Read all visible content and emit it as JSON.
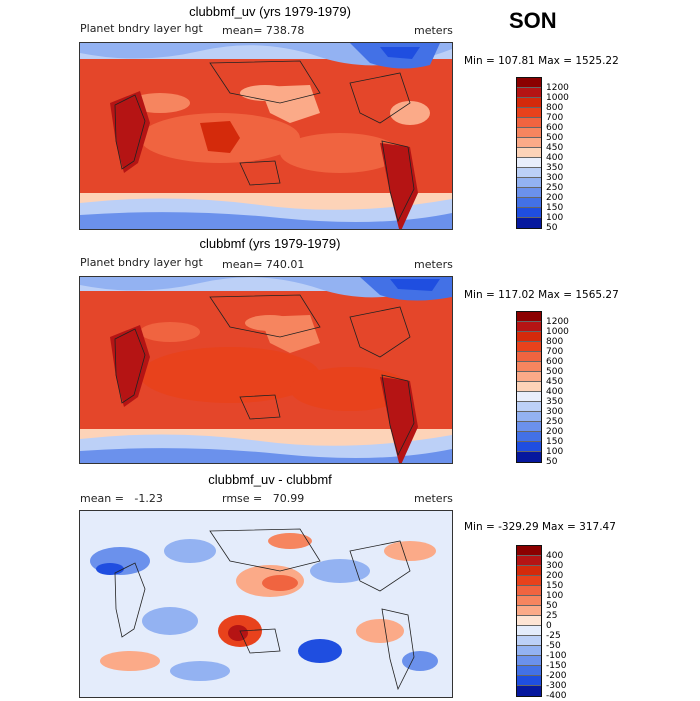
{
  "season": "SON",
  "panels": [
    {
      "title": "clubbmf_uv (yrs 1979-1979)",
      "left_label": "Planet bndry layer hgt",
      "mean_label": "mean= 738.78",
      "units": "meters",
      "minmax": "Min = 107.81 Max = 1525.22",
      "levels": [
        "1200",
        "1000",
        "800",
        "700",
        "600",
        "500",
        "450",
        "400",
        "350",
        "300",
        "250",
        "200",
        "150",
        "100",
        "50"
      ],
      "colors": [
        "#8b0000",
        "#b51414",
        "#d42a0b",
        "#e8421c",
        "#f06440",
        "#f6855f",
        "#fbaa88",
        "#fdd3b8",
        "#e9eefb",
        "#bcd0f7",
        "#93b2f2",
        "#6b91ec",
        "#4371e6",
        "#1f4ee0",
        "#06189e"
      ]
    },
    {
      "title": "clubbmf (yrs 1979-1979)",
      "left_label": "Planet bndry layer hgt",
      "mean_label": "mean= 740.01",
      "units": "meters",
      "minmax": "Min = 117.02 Max = 1565.27",
      "levels": [
        "1200",
        "1000",
        "800",
        "700",
        "600",
        "500",
        "450",
        "400",
        "350",
        "300",
        "250",
        "200",
        "150",
        "100",
        "50"
      ],
      "colors": [
        "#8b0000",
        "#b51414",
        "#d42a0b",
        "#e8421c",
        "#f06440",
        "#f6855f",
        "#fbaa88",
        "#fdd3b8",
        "#e9eefb",
        "#bcd0f7",
        "#93b2f2",
        "#6b91ec",
        "#4371e6",
        "#1f4ee0",
        "#06189e"
      ]
    },
    {
      "title": "clubbmf_uv - clubbmf",
      "left_label": "mean =   -1.23",
      "mean_label": "rmse =   70.99",
      "units": "meters",
      "minmax": "Min = -329.29 Max = 317.47",
      "levels": [
        "400",
        "300",
        "200",
        "150",
        "100",
        "50",
        "25",
        "0",
        "-25",
        "-50",
        "-100",
        "-150",
        "-200",
        "-300",
        "-400"
      ],
      "colors": [
        "#8b0000",
        "#b51414",
        "#d42a0b",
        "#e8421c",
        "#f06440",
        "#f6855f",
        "#fbaa88",
        "#fde4d4",
        "#e4ecfb",
        "#bcd0f7",
        "#93b2f2",
        "#6b91ec",
        "#4371e6",
        "#1f4ee0",
        "#06189e"
      ]
    }
  ]
}
